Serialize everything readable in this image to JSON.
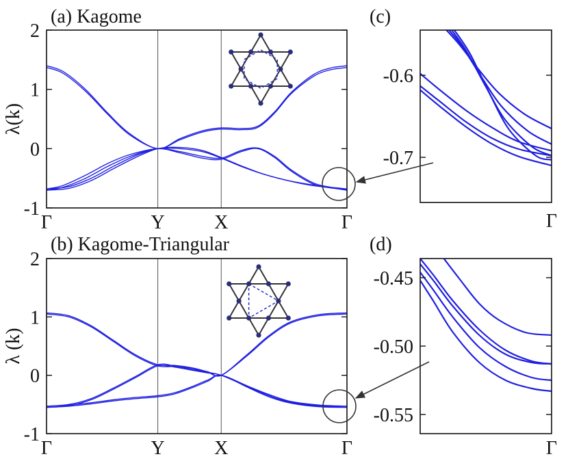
{
  "colors": {
    "band": "#1f1fe0",
    "axis": "#111111",
    "guide": "#555555",
    "arrow": "#333333",
    "lattice_node": "#2a2d7a",
    "lattice_edge": "#333333"
  },
  "chart_data": [
    {
      "id": "a",
      "type": "line",
      "title": "(a) Kagome",
      "ylabel": "λ(k)",
      "ylim": [
        -1,
        2
      ],
      "yticks": [
        "-1",
        "0",
        "1",
        "2"
      ],
      "ytick_values": [
        -1,
        0,
        1,
        2
      ],
      "xticks": [
        "Γ",
        "Y",
        "X",
        "Γ"
      ],
      "xtick_positions": [
        0,
        1,
        1.57,
        2.7
      ],
      "xlim": [
        0,
        2.7
      ],
      "inset_icon": "kagome-star-lattice-icon",
      "series": [
        {
          "x": [
            0,
            0.15,
            0.35,
            0.55,
            0.75,
            1.0,
            1.2,
            1.4,
            1.57,
            1.75,
            1.9,
            2.05,
            2.2,
            2.4,
            2.55,
            2.7
          ],
          "values": [
            1.4,
            1.3,
            1.0,
            0.6,
            0.25,
            0.0,
            0.17,
            0.3,
            0.35,
            0.34,
            0.38,
            0.62,
            0.95,
            1.25,
            1.36,
            1.4
          ]
        },
        {
          "x": [
            0,
            0.15,
            0.35,
            0.55,
            0.75,
            1.0,
            1.2,
            1.4,
            1.57,
            1.75,
            1.9,
            2.05,
            2.2,
            2.4,
            2.55,
            2.7
          ],
          "values": [
            1.37,
            1.27,
            0.97,
            0.58,
            0.23,
            0.0,
            0.15,
            0.28,
            0.33,
            0.32,
            0.36,
            0.6,
            0.93,
            1.22,
            1.33,
            1.37
          ]
        },
        {
          "x": [
            0,
            0.15,
            0.35,
            0.55,
            0.75,
            1.0,
            1.2,
            1.4,
            1.57,
            1.75,
            1.9,
            2.05,
            2.2,
            2.4,
            2.55,
            2.7
          ],
          "values": [
            -0.68,
            -0.62,
            -0.45,
            -0.25,
            -0.1,
            0.0,
            -0.07,
            -0.16,
            -0.18,
            -0.05,
            0.0,
            -0.15,
            -0.38,
            -0.6,
            -0.66,
            -0.68
          ]
        },
        {
          "x": [
            0,
            0.15,
            0.35,
            0.55,
            0.75,
            1.0,
            1.2,
            1.4,
            1.57,
            1.75,
            1.9,
            2.05,
            2.2,
            2.4,
            2.55,
            2.7
          ],
          "values": [
            -0.7,
            -0.65,
            -0.5,
            -0.3,
            -0.13,
            0.0,
            -0.05,
            -0.13,
            -0.16,
            -0.03,
            0.01,
            -0.13,
            -0.36,
            -0.58,
            -0.65,
            -0.7
          ]
        },
        {
          "x": [
            0,
            0.2,
            0.4,
            0.6,
            0.8,
            1.0,
            1.2,
            1.4,
            1.57,
            1.75,
            1.95,
            2.15,
            2.35,
            2.55,
            2.7
          ],
          "values": [
            -0.68,
            -0.64,
            -0.5,
            -0.3,
            -0.12,
            0.0,
            0.0,
            -0.05,
            -0.16,
            -0.3,
            -0.43,
            -0.53,
            -0.6,
            -0.65,
            -0.68
          ]
        },
        {
          "x": [
            0,
            0.2,
            0.4,
            0.6,
            0.8,
            1.0,
            1.2,
            1.4,
            1.57,
            1.75,
            1.95,
            2.15,
            2.35,
            2.55,
            2.7
          ],
          "values": [
            -0.7,
            -0.67,
            -0.54,
            -0.34,
            -0.15,
            0.0,
            0.02,
            -0.03,
            -0.15,
            -0.29,
            -0.43,
            -0.53,
            -0.61,
            -0.66,
            -0.7
          ]
        }
      ]
    },
    {
      "id": "b",
      "type": "line",
      "title": "(b) Kagome-Triangular",
      "ylabel": "λ (k)",
      "ylim": [
        -1,
        2
      ],
      "yticks": [
        "-1",
        "0",
        "1",
        "2"
      ],
      "ytick_values": [
        -1,
        0,
        1,
        2
      ],
      "xticks": [
        "Γ",
        "Y",
        "X",
        "Γ"
      ],
      "xtick_positions": [
        0,
        1,
        1.57,
        2.7
      ],
      "xlim": [
        0,
        2.7
      ],
      "inset_icon": "kagome-triangular-lattice-icon",
      "series": [
        {
          "x": [
            0,
            0.2,
            0.4,
            0.6,
            0.8,
            1.0,
            1.15,
            1.3,
            1.45,
            1.57,
            1.8,
            2.0,
            2.2,
            2.45,
            2.7
          ],
          "values": [
            1.07,
            1.02,
            0.85,
            0.6,
            0.35,
            0.18,
            0.17,
            0.13,
            0.06,
            0.0,
            0.35,
            0.68,
            0.92,
            1.04,
            1.07
          ]
        },
        {
          "x": [
            0,
            0.2,
            0.4,
            0.6,
            0.8,
            1.0,
            1.15,
            1.3,
            1.45,
            1.57,
            1.8,
            2.0,
            2.2,
            2.45,
            2.7
          ],
          "values": [
            1.05,
            1.0,
            0.83,
            0.58,
            0.33,
            0.16,
            0.15,
            0.12,
            0.05,
            0.0,
            0.33,
            0.66,
            0.9,
            1.02,
            1.05
          ]
        },
        {
          "x": [
            0,
            0.2,
            0.4,
            0.6,
            0.8,
            1.0,
            1.15,
            1.3,
            1.45,
            1.57,
            1.8,
            2.0,
            2.2,
            2.45,
            2.7
          ],
          "values": [
            -0.53,
            -0.51,
            -0.47,
            -0.42,
            -0.38,
            -0.35,
            -0.3,
            -0.2,
            -0.08,
            0.0,
            -0.18,
            -0.35,
            -0.46,
            -0.52,
            -0.53
          ]
        },
        {
          "x": [
            0,
            0.2,
            0.4,
            0.6,
            0.8,
            1.0,
            1.15,
            1.3,
            1.45,
            1.57,
            1.8,
            2.0,
            2.2,
            2.45,
            2.7
          ],
          "values": [
            -0.55,
            -0.53,
            -0.49,
            -0.44,
            -0.4,
            -0.37,
            -0.32,
            -0.22,
            -0.1,
            0.0,
            -0.2,
            -0.37,
            -0.48,
            -0.54,
            -0.55
          ]
        },
        {
          "x": [
            0,
            0.2,
            0.4,
            0.6,
            0.8,
            1.0,
            1.15,
            1.3,
            1.45,
            1.57,
            1.8,
            2.0,
            2.2,
            2.45,
            2.7
          ],
          "values": [
            -0.53,
            -0.5,
            -0.4,
            -0.22,
            -0.02,
            0.18,
            0.16,
            0.1,
            0.05,
            0.0,
            -0.18,
            -0.33,
            -0.45,
            -0.51,
            -0.53
          ]
        },
        {
          "x": [
            0,
            0.2,
            0.4,
            0.6,
            0.8,
            1.0,
            1.15,
            1.3,
            1.45,
            1.57,
            1.8,
            2.0,
            2.2,
            2.45,
            2.7
          ],
          "values": [
            -0.55,
            -0.52,
            -0.42,
            -0.24,
            -0.04,
            0.16,
            0.14,
            0.09,
            0.04,
            0.0,
            -0.19,
            -0.35,
            -0.47,
            -0.53,
            -0.55
          ]
        }
      ]
    },
    {
      "id": "c",
      "type": "line",
      "title": "(c)",
      "ylim": [
        -0.755,
        -0.545
      ],
      "yticks": [
        "-0.6",
        "-0.7"
      ],
      "ytick_values": [
        -0.6,
        -0.7
      ],
      "xticks": [
        "Γ"
      ],
      "xtick_positions": [
        1
      ],
      "xlim": [
        0,
        1
      ],
      "series": [
        {
          "x": [
            0.2,
            0.3,
            0.45,
            0.6,
            0.8,
            1.0
          ],
          "values": [
            -0.545,
            -0.563,
            -0.594,
            -0.622,
            -0.648,
            -0.665
          ]
        },
        {
          "x": [
            0.22,
            0.32,
            0.47,
            0.62,
            0.82,
            1.0
          ],
          "values": [
            -0.545,
            -0.565,
            -0.603,
            -0.638,
            -0.668,
            -0.684
          ]
        },
        {
          "x": [
            0.24,
            0.35,
            0.5,
            0.65,
            0.85,
            1.0
          ],
          "values": [
            -0.545,
            -0.57,
            -0.614,
            -0.655,
            -0.687,
            -0.698
          ]
        },
        {
          "x": [
            0.26,
            0.38,
            0.53,
            0.68,
            0.88,
            1.0
          ],
          "values": [
            -0.545,
            -0.574,
            -0.623,
            -0.667,
            -0.698,
            -0.703
          ]
        },
        {
          "x": [
            0.0,
            0.15,
            0.35,
            0.55,
            0.75,
            1.0
          ],
          "values": [
            -0.598,
            -0.618,
            -0.643,
            -0.664,
            -0.681,
            -0.692
          ]
        },
        {
          "x": [
            0.0,
            0.15,
            0.35,
            0.55,
            0.75,
            1.0
          ],
          "values": [
            -0.613,
            -0.632,
            -0.657,
            -0.677,
            -0.69,
            -0.698
          ]
        },
        {
          "x": [
            0.0,
            0.15,
            0.35,
            0.55,
            0.75,
            1.0
          ],
          "values": [
            -0.618,
            -0.638,
            -0.663,
            -0.684,
            -0.699,
            -0.71
          ]
        }
      ]
    },
    {
      "id": "d",
      "type": "line",
      "title": "(d)",
      "ylim": [
        -0.564,
        -0.436
      ],
      "yticks": [
        "-0.45",
        "-0.50",
        "-0.55"
      ],
      "ytick_values": [
        -0.45,
        -0.5,
        -0.55
      ],
      "xticks": [
        "Γ"
      ],
      "xtick_positions": [
        1
      ],
      "xlim": [
        0,
        1
      ],
      "series": [
        {
          "x": [
            0.18,
            0.3,
            0.45,
            0.6,
            0.8,
            1.0
          ],
          "values": [
            -0.436,
            -0.451,
            -0.469,
            -0.481,
            -0.49,
            -0.492
          ]
        },
        {
          "x": [
            0.0,
            0.1,
            0.25,
            0.45,
            0.65,
            0.85,
            1.0
          ],
          "values": [
            -0.436,
            -0.448,
            -0.467,
            -0.488,
            -0.503,
            -0.511,
            -0.513
          ]
        },
        {
          "x": [
            0.0,
            0.1,
            0.25,
            0.45,
            0.65,
            0.85,
            1.0
          ],
          "values": [
            -0.44,
            -0.452,
            -0.471,
            -0.492,
            -0.506,
            -0.512,
            -0.513
          ]
        },
        {
          "x": [
            0.0,
            0.1,
            0.25,
            0.45,
            0.65,
            0.85,
            1.0
          ],
          "values": [
            -0.446,
            -0.459,
            -0.479,
            -0.501,
            -0.515,
            -0.523,
            -0.525
          ]
        },
        {
          "x": [
            0.0,
            0.1,
            0.25,
            0.45,
            0.65,
            0.85,
            1.0
          ],
          "values": [
            -0.452,
            -0.467,
            -0.49,
            -0.512,
            -0.525,
            -0.531,
            -0.533
          ]
        }
      ]
    }
  ]
}
